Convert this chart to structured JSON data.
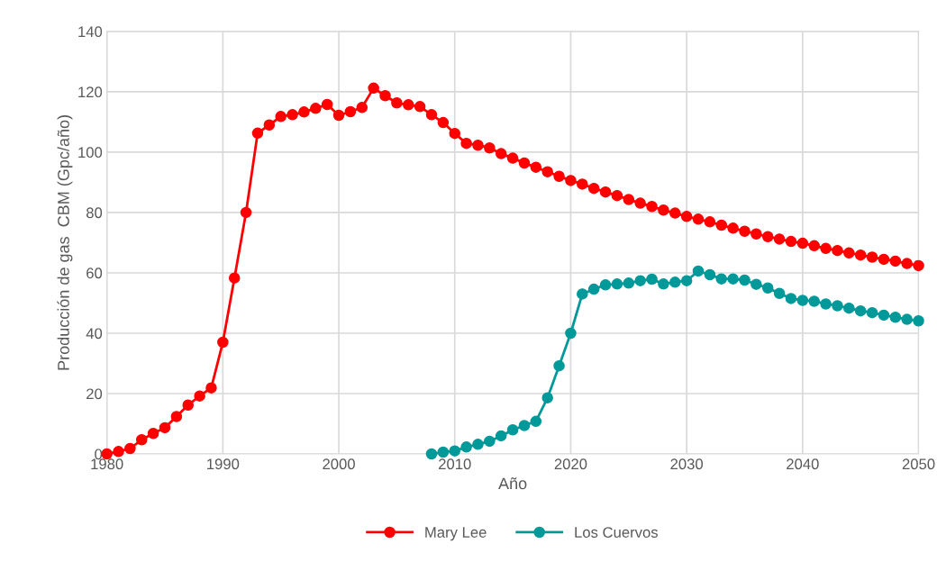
{
  "chart_data": {
    "type": "line",
    "xlabel": "Año",
    "ylabel": "Producción de gas  CBM (Gpc/año)",
    "xlim": [
      1980,
      2050
    ],
    "xticks": [
      1980,
      1990,
      2000,
      2010,
      2020,
      2030,
      2040,
      2050
    ],
    "ylim": [
      0,
      140
    ],
    "yticks": [
      0,
      20,
      40,
      60,
      80,
      100,
      120,
      140
    ],
    "grid": true,
    "legend": "bottom",
    "marker": "circle",
    "line_style": "solid",
    "series": [
      {
        "name": "Mary Lee",
        "color": "#ff0000",
        "x": [
          1980,
          1981,
          1982,
          1983,
          1984,
          1985,
          1986,
          1987,
          1988,
          1989,
          1990,
          1991,
          1992,
          1993,
          1994,
          1995,
          1996,
          1997,
          1998,
          1999,
          2000,
          2001,
          2002,
          2003,
          2004,
          2005,
          2006,
          2007,
          2008,
          2009,
          2010,
          2011,
          2012,
          2013,
          2014,
          2015,
          2016,
          2017,
          2018,
          2019,
          2020,
          2021,
          2022,
          2023,
          2024,
          2025,
          2026,
          2027,
          2028,
          2029,
          2030,
          2031,
          2032,
          2033,
          2034,
          2035,
          2036,
          2037,
          2038,
          2039,
          2040,
          2041,
          2042,
          2043,
          2044,
          2045,
          2046,
          2047,
          2048,
          2049,
          2050
        ],
        "values": [
          0,
          0.8,
          1.8,
          4.7,
          6.8,
          8.7,
          12.4,
          16.2,
          19.2,
          21.9,
          37,
          58.3,
          80,
          106.3,
          109,
          111.8,
          112.4,
          113.3,
          114.5,
          115.8,
          112.2,
          113.4,
          114.8,
          121.2,
          118.7,
          116.3,
          115.7,
          115.1,
          112.4,
          109.8,
          106.2,
          102.9,
          102.3,
          101.4,
          99.5,
          98,
          96.4,
          95,
          93.5,
          92,
          90.6,
          89.4,
          88,
          86.8,
          85.6,
          84.3,
          83.1,
          82,
          80.8,
          79.8,
          78.7,
          77.8,
          76.9,
          75.8,
          74.8,
          73.8,
          72.9,
          72,
          71.2,
          70.4,
          69.8,
          69,
          68.1,
          67.4,
          66.6,
          65.9,
          65.2,
          64.5,
          63.9,
          63.1,
          62.4
        ]
      },
      {
        "name": "Los Cuervos",
        "color": "#009999",
        "x": [
          2008,
          2009,
          2010,
          2011,
          2012,
          2013,
          2014,
          2015,
          2016,
          2017,
          2018,
          2019,
          2020,
          2021,
          2022,
          2023,
          2024,
          2025,
          2026,
          2027,
          2028,
          2029,
          2030,
          2031,
          2032,
          2033,
          2034,
          2035,
          2036,
          2037,
          2038,
          2039,
          2040,
          2041,
          2042,
          2043,
          2044,
          2045,
          2046,
          2047,
          2048,
          2049,
          2050
        ],
        "values": [
          0,
          0.6,
          1,
          2.3,
          3.2,
          4.2,
          6,
          8,
          9.4,
          10.8,
          18.6,
          29.2,
          40,
          53,
          54.6,
          56,
          56.3,
          56.6,
          57.4,
          57.9,
          56.3,
          56.9,
          57.4,
          60.6,
          59.4,
          58,
          58,
          57.6,
          56.2,
          55,
          53.2,
          51.5,
          50.9,
          50.6,
          49.7,
          49.1,
          48.3,
          47.4,
          46.8,
          46,
          45.3,
          44.6,
          44.1
        ]
      }
    ]
  }
}
